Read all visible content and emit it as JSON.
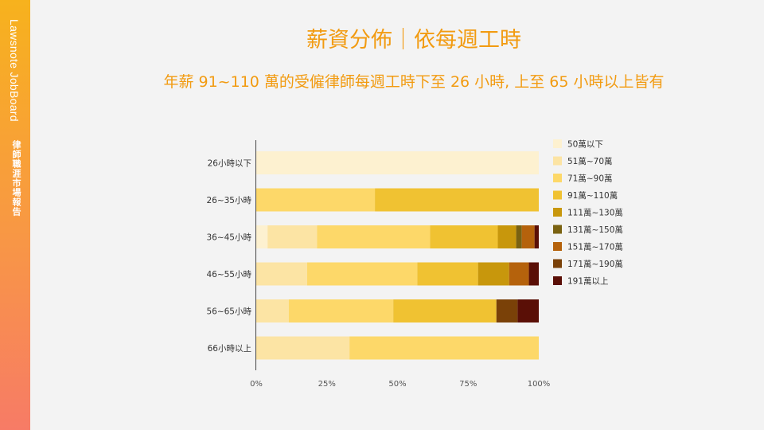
{
  "brand": {
    "name": "Lawsnote JobBoard",
    "report": "律師職涯市場報告"
  },
  "title": "薪資分佈｜依每週工時",
  "subtitle": "年薪 91~110 萬的受僱律師每週工時下至 26 小時, 上至 65 小時以上皆有",
  "colors": {
    "accent": "#f29b11",
    "sidebar_top": "#f7b21d",
    "sidebar_bottom": "#f77b66"
  },
  "chart_data": {
    "type": "bar",
    "orientation": "horizontal",
    "stacked": "percent",
    "categories": [
      "26小時以下",
      "26~35小時",
      "36~45小時",
      "46~55小時",
      "56~65小時",
      "66小時以上"
    ],
    "series": [
      {
        "name": "50萬以下",
        "color": "#fdf1d0",
        "values": [
          100,
          0,
          4,
          0,
          0,
          0
        ]
      },
      {
        "name": "51萬~70萬",
        "color": "#fce4a4",
        "values": [
          0,
          0,
          17.5,
          18,
          11.5,
          33
        ]
      },
      {
        "name": "71萬~90萬",
        "color": "#fdd869",
        "values": [
          0,
          42,
          40,
          39,
          37,
          67
        ]
      },
      {
        "name": "91萬~110萬",
        "color": "#f0c232",
        "values": [
          0,
          58,
          24,
          21.5,
          36.5,
          0
        ]
      },
      {
        "name": "111萬~130萬",
        "color": "#c8970c",
        "values": [
          0,
          0,
          6.5,
          11,
          0,
          0
        ]
      },
      {
        "name": "131萬~150萬",
        "color": "#7a6211",
        "values": [
          0,
          0,
          2,
          0,
          0,
          0
        ]
      },
      {
        "name": "151萬~170萬",
        "color": "#b5620c",
        "values": [
          0,
          0,
          4.5,
          7,
          0,
          0
        ]
      },
      {
        "name": "171萬~190萬",
        "color": "#7a4108",
        "values": [
          0,
          0,
          0,
          0,
          7.5,
          0
        ]
      },
      {
        "name": "191萬以上",
        "color": "#5a0f06",
        "values": [
          0,
          0,
          1.5,
          3.5,
          7.5,
          0
        ]
      }
    ],
    "xlim": [
      0,
      100
    ],
    "x_ticks": [
      "0%",
      "25%",
      "50%",
      "75%",
      "100%"
    ],
    "xlabel": "",
    "ylabel": "",
    "legend": "right",
    "grid": false
  }
}
